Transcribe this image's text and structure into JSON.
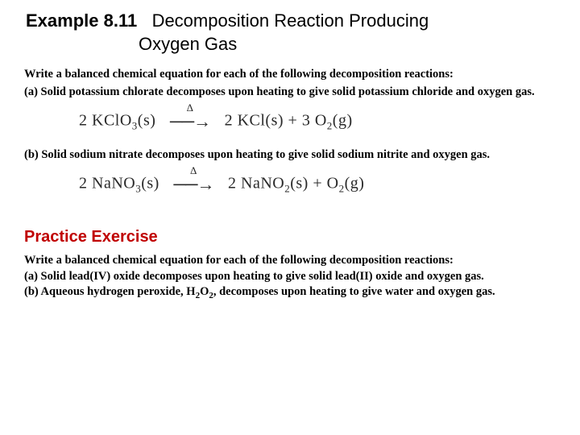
{
  "header": {
    "example_label": "Example 8.11",
    "title_line1": "Decomposition Reaction Producing",
    "title_line2": "Oxygen Gas"
  },
  "body": {
    "intro": "Write a balanced chemical equation for each of the following decomposition reactions:",
    "part_a": "(a)  Solid potassium chlorate decomposes upon heating to give solid potassium chloride and oxygen gas.",
    "part_b": "(b)   Solid sodium nitrate decomposes upon heating to give solid sodium nitrite and oxygen gas."
  },
  "equations": {
    "eq_a": {
      "lhs_coeff": "2",
      "lhs_formula": "KClO",
      "lhs_sub": "3",
      "lhs_state": "(s)",
      "rhs1_coeff": "2",
      "rhs1_formula": "KCl(s)",
      "rhs2_coeff": "3",
      "rhs2_formula": "O",
      "rhs2_sub": "2",
      "rhs2_state": "(g)",
      "delta": "Δ"
    },
    "eq_b": {
      "lhs_coeff": "2",
      "lhs_formula": "NaNO",
      "lhs_sub": "3",
      "lhs_state": "(s)",
      "rhs1_coeff": "2",
      "rhs1_formula": "NaNO",
      "rhs1_sub": "2",
      "rhs1_state": "(s)",
      "rhs2_formula": "O",
      "rhs2_sub": "2",
      "rhs2_state": "(g)",
      "delta": "Δ"
    }
  },
  "practice": {
    "heading": "Practice Exercise",
    "intro": "Write a balanced chemical equation for each of the following decomposition reactions:",
    "part_a": "(a)   Solid lead(IV) oxide decomposes upon heating to give solid lead(II) oxide and oxygen gas.",
    "part_b_pre": "(b)   Aqueous hydrogen peroxide, H",
    "part_b_sub1": "2",
    "part_b_mid": "O",
    "part_b_sub2": "2",
    "part_b_post": ", decomposes upon heating to give water and oxygen gas."
  },
  "style": {
    "bg": "#ffffff",
    "text": "#000000",
    "practice_color": "#c00000",
    "example_fontsize": 22,
    "body_fontsize": 14.5,
    "equation_fontsize": 20,
    "practice_heading_fontsize": 20
  }
}
